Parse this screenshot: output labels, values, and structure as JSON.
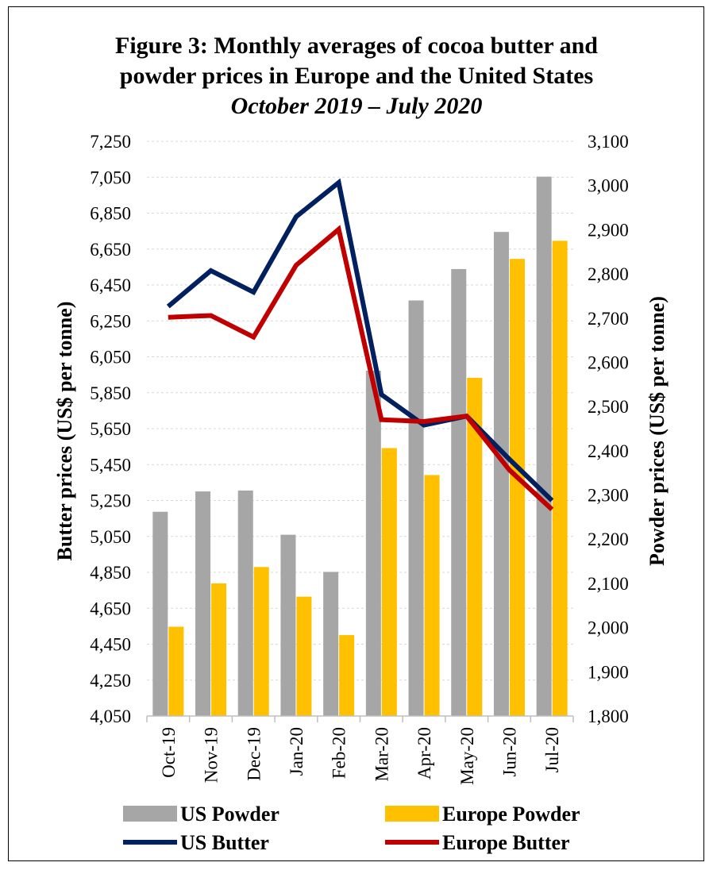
{
  "title_line1": "Figure 3: Monthly averages of cocoa butter and",
  "title_line2": "powder prices in Europe and the United States",
  "subtitle": "October 2019 – July 2020",
  "chart_data": {
    "type": "bar",
    "title": "Figure 3: Monthly averages of cocoa butter and powder prices in Europe and the United States",
    "subtitle": "October 2019 – July 2020",
    "categories": [
      "Oct-19",
      "Nov-19",
      "Dec-19",
      "Jan-20",
      "Feb-20",
      "Mar-20",
      "Apr-20",
      "May-20",
      "Jun-20",
      "Jul-20"
    ],
    "ylabel_left": "Butter prices (US$ per tonne)",
    "ylabel_right": "Powder prices (US$ per tonne)",
    "ylim_left": [
      4050,
      7250
    ],
    "ylim_right": [
      1800,
      3100
    ],
    "yticks_left": [
      "4,050",
      "4,250",
      "4,450",
      "4,650",
      "4,850",
      "5,050",
      "5,250",
      "5,450",
      "5,650",
      "5,850",
      "6,050",
      "6,250",
      "6,450",
      "6,650",
      "6,850",
      "7,050",
      "7,250"
    ],
    "yticks_right": [
      "1,800",
      "1,900",
      "2,000",
      "2,100",
      "2,200",
      "2,300",
      "2,400",
      "2,500",
      "2,600",
      "2,700",
      "2,800",
      "2,900",
      "3,000",
      "3,100"
    ],
    "grid": true,
    "legend_position": "bottom",
    "bar_series": [
      {
        "name": "US Powder",
        "axis": "right",
        "color": "#a6a6a6",
        "values": [
          2262,
          2308,
          2310,
          2210,
          2126,
          2581,
          2740,
          2811,
          2895,
          3020
        ]
      },
      {
        "name": "Europe Powder",
        "axis": "right",
        "color": "#ffc000",
        "values": [
          2002,
          2100,
          2137,
          2070,
          1983,
          2406,
          2345,
          2565,
          2834,
          2875
        ]
      }
    ],
    "line_series": [
      {
        "name": "US Butter",
        "axis": "left",
        "color": "#002060",
        "values": [
          6330,
          6530,
          6410,
          6830,
          7020,
          5840,
          5670,
          5720,
          5480,
          5250
        ]
      },
      {
        "name": "Europe Butter",
        "axis": "left",
        "color": "#c00000",
        "values": [
          6270,
          6280,
          6160,
          6560,
          6760,
          5700,
          5690,
          5720,
          5420,
          5200
        ]
      }
    ]
  }
}
